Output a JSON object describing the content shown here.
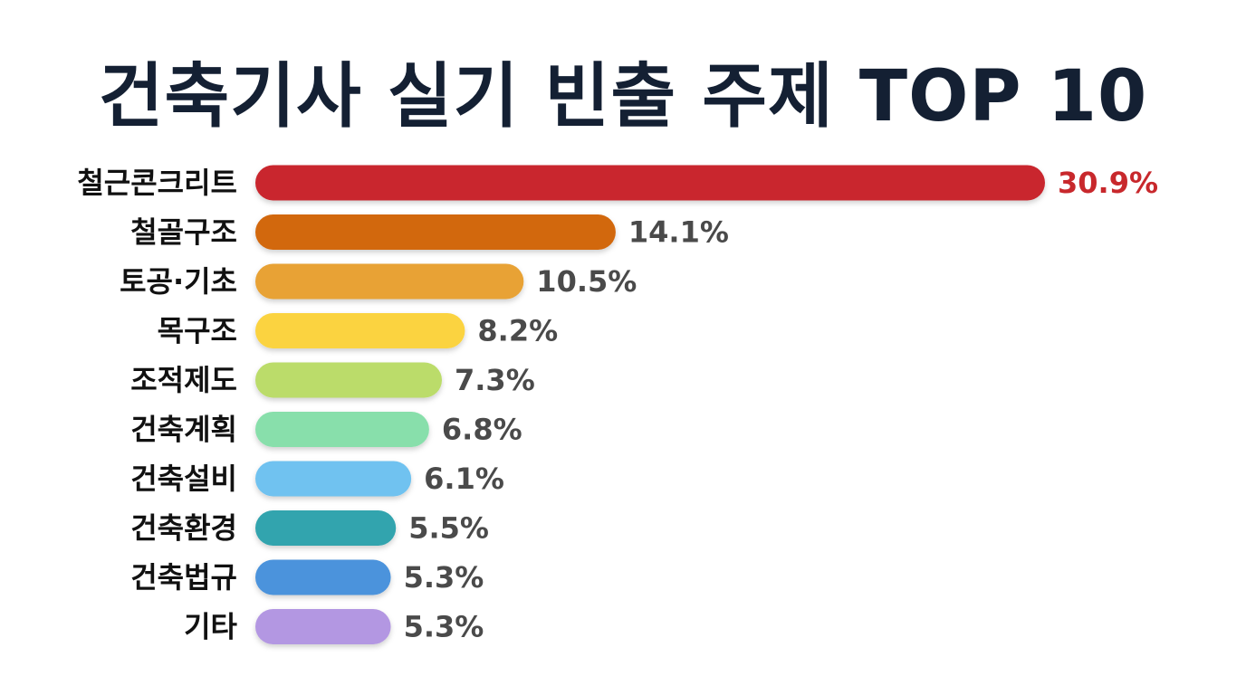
{
  "chart_data": {
    "type": "bar",
    "orientation": "horizontal",
    "title": "건축기사 실기 빈출 주제 TOP 10",
    "categories": [
      "철근콘크리트",
      "철골구조",
      "토공·기초",
      "목구조",
      "조적제도",
      "건축계획",
      "건축설비",
      "건축환경",
      "건축법규",
      "기타"
    ],
    "values": [
      30.9,
      14.1,
      10.5,
      8.2,
      7.3,
      6.8,
      6.1,
      5.5,
      5.3,
      5.3
    ],
    "value_labels": [
      "30.9%",
      "14.1%",
      "10.5%",
      "8.2%",
      "7.3%",
      "6.8%",
      "6.1%",
      "5.5%",
      "5.3%",
      "5.3%"
    ],
    "unit": "%",
    "colors": [
      "#c9282d",
      "#d2680f",
      "#e8a234",
      "#fbd340",
      "#bbdc6b",
      "#88dfab",
      "#6fc2f0",
      "#30a4ae",
      "#4b93dc",
      "#b397e2"
    ],
    "highlight_color": "#c8282c",
    "grid": false,
    "legend": "none"
  }
}
